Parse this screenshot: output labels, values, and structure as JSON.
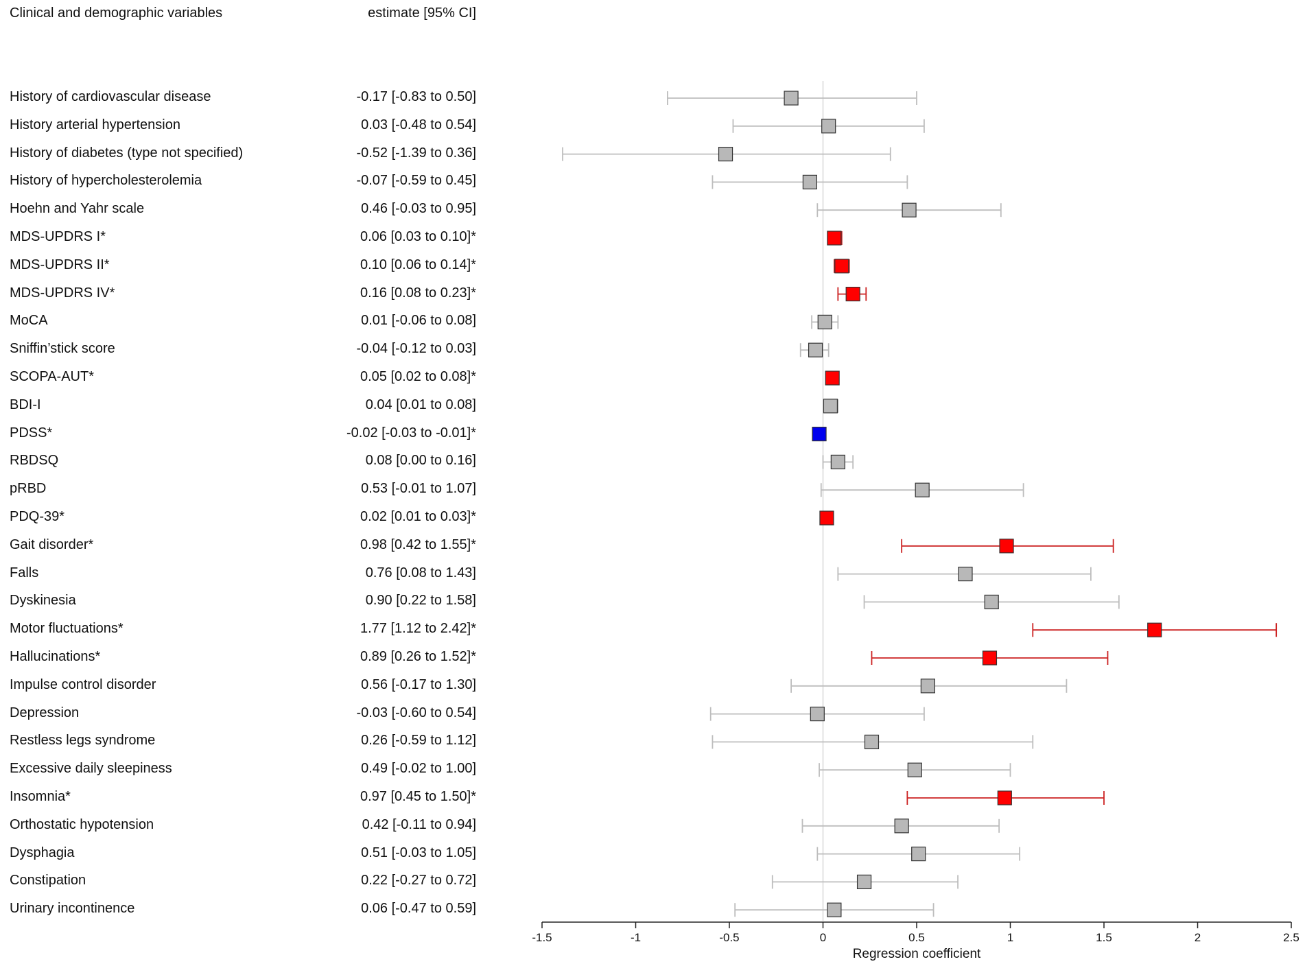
{
  "header": {
    "variables_title": "Clinical and demographic variables",
    "estimate_title": "estimate [95% CI]"
  },
  "colors": {
    "significant_positive": "#ff0000",
    "significant_positive_line": "#cc2222",
    "significant_negative": "#0000ee",
    "nonsignificant": "#b8b8b8",
    "nonsignificant_line": "#bdbdbd",
    "zero_line": "#d8d8d8"
  },
  "chart_data": {
    "type": "forest",
    "xlabel": "Regression coefficient",
    "xlim": [
      -1.5,
      2.5
    ],
    "xticks": [
      -1.5,
      -1,
      -0.5,
      0,
      0.5,
      1,
      1.5,
      2,
      2.5
    ],
    "xtick_labels": [
      "-1.5",
      "-1",
      "-0.5",
      "0",
      "0.5",
      "1",
      "1.5",
      "2",
      "2.5"
    ],
    "reference_line": 0,
    "rows": [
      {
        "label": "History of cardiovascular disease",
        "estimate_text": "-0.17 [-0.83 to 0.50]",
        "est": -0.17,
        "lo": -0.83,
        "hi": 0.5,
        "sig": "none"
      },
      {
        "label": "History arterial hypertension",
        "estimate_text": "0.03 [-0.48 to 0.54]",
        "est": 0.03,
        "lo": -0.48,
        "hi": 0.54,
        "sig": "none"
      },
      {
        "label": "History of diabetes (type not specified)",
        "estimate_text": "-0.52 [-1.39 to 0.36]",
        "est": -0.52,
        "lo": -1.39,
        "hi": 0.36,
        "sig": "none"
      },
      {
        "label": "History of hypercholesterolemia",
        "estimate_text": "-0.07 [-0.59 to 0.45]",
        "est": -0.07,
        "lo": -0.59,
        "hi": 0.45,
        "sig": "none"
      },
      {
        "label": "Hoehn and Yahr scale",
        "estimate_text": "0.46 [-0.03 to 0.95]",
        "est": 0.46,
        "lo": -0.03,
        "hi": 0.95,
        "sig": "none"
      },
      {
        "label": "MDS-UPDRS I*",
        "estimate_text": "0.06 [0.03 to 0.10]*",
        "est": 0.06,
        "lo": 0.03,
        "hi": 0.1,
        "sig": "pos"
      },
      {
        "label": "MDS-UPDRS II*",
        "estimate_text": "0.10 [0.06 to 0.14]*",
        "est": 0.1,
        "lo": 0.06,
        "hi": 0.14,
        "sig": "pos"
      },
      {
        "label": "MDS-UPDRS IV*",
        "estimate_text": "0.16 [0.08 to 0.23]*",
        "est": 0.16,
        "lo": 0.08,
        "hi": 0.23,
        "sig": "pos"
      },
      {
        "label": "MoCA",
        "estimate_text": "0.01 [-0.06 to 0.08]",
        "est": 0.01,
        "lo": -0.06,
        "hi": 0.08,
        "sig": "none"
      },
      {
        "label": "Sniffin’stick score",
        "estimate_text": "-0.04 [-0.12 to 0.03]",
        "est": -0.04,
        "lo": -0.12,
        "hi": 0.03,
        "sig": "none"
      },
      {
        "label": "SCOPA-AUT*",
        "estimate_text": "0.05 [0.02 to 0.08]*",
        "est": 0.05,
        "lo": 0.02,
        "hi": 0.08,
        "sig": "pos"
      },
      {
        "label": "BDI-I",
        "estimate_text": "0.04 [0.01 to 0.08]",
        "est": 0.04,
        "lo": 0.01,
        "hi": 0.08,
        "sig": "none"
      },
      {
        "label": "PDSS*",
        "estimate_text": "-0.02 [-0.03 to -0.01]*",
        "est": -0.02,
        "lo": -0.03,
        "hi": -0.01,
        "sig": "neg"
      },
      {
        "label": "RBDSQ",
        "estimate_text": "0.08 [0.00 to 0.16]",
        "est": 0.08,
        "lo": 0.0,
        "hi": 0.16,
        "sig": "none"
      },
      {
        "label": "pRBD",
        "estimate_text": "0.53 [-0.01 to 1.07]",
        "est": 0.53,
        "lo": -0.01,
        "hi": 1.07,
        "sig": "none"
      },
      {
        "label": "PDQ-39*",
        "estimate_text": "0.02 [0.01 to 0.03]*",
        "est": 0.02,
        "lo": 0.01,
        "hi": 0.03,
        "sig": "pos"
      },
      {
        "label": "Gait disorder*",
        "estimate_text": "0.98 [0.42 to 1.55]*",
        "est": 0.98,
        "lo": 0.42,
        "hi": 1.55,
        "sig": "pos"
      },
      {
        "label": "Falls",
        "estimate_text": "0.76 [0.08 to 1.43]",
        "est": 0.76,
        "lo": 0.08,
        "hi": 1.43,
        "sig": "none"
      },
      {
        "label": "Dyskinesia",
        "estimate_text": "0.90 [0.22 to 1.58]",
        "est": 0.9,
        "lo": 0.22,
        "hi": 1.58,
        "sig": "none"
      },
      {
        "label": "Motor fluctuations*",
        "estimate_text": "1.77 [1.12 to 2.42]*",
        "est": 1.77,
        "lo": 1.12,
        "hi": 2.42,
        "sig": "pos"
      },
      {
        "label": "Hallucinations*",
        "estimate_text": "0.89 [0.26 to 1.52]*",
        "est": 0.89,
        "lo": 0.26,
        "hi": 1.52,
        "sig": "pos"
      },
      {
        "label": "Impulse control disorder",
        "estimate_text": "0.56 [-0.17 to 1.30]",
        "est": 0.56,
        "lo": -0.17,
        "hi": 1.3,
        "sig": "none"
      },
      {
        "label": "Depression",
        "estimate_text": "-0.03 [-0.60 to 0.54]",
        "est": -0.03,
        "lo": -0.6,
        "hi": 0.54,
        "sig": "none"
      },
      {
        "label": "Restless legs syndrome",
        "estimate_text": "0.26 [-0.59 to 1.12]",
        "est": 0.26,
        "lo": -0.59,
        "hi": 1.12,
        "sig": "none"
      },
      {
        "label": "Excessive daily sleepiness",
        "estimate_text": "0.49 [-0.02 to 1.00]",
        "est": 0.49,
        "lo": -0.02,
        "hi": 1.0,
        "sig": "none"
      },
      {
        "label": "Insomnia*",
        "estimate_text": "0.97 [0.45 to 1.50]*",
        "est": 0.97,
        "lo": 0.45,
        "hi": 1.5,
        "sig": "pos"
      },
      {
        "label": "Orthostatic hypotension",
        "estimate_text": "0.42 [-0.11 to 0.94]",
        "est": 0.42,
        "lo": -0.11,
        "hi": 0.94,
        "sig": "none"
      },
      {
        "label": "Dysphagia",
        "estimate_text": "0.51 [-0.03 to 1.05]",
        "est": 0.51,
        "lo": -0.03,
        "hi": 1.05,
        "sig": "none"
      },
      {
        "label": "Constipation",
        "estimate_text": "0.22 [-0.27 to 0.72]",
        "est": 0.22,
        "lo": -0.27,
        "hi": 0.72,
        "sig": "none"
      },
      {
        "label": "Urinary incontinence",
        "estimate_text": "0.06 [-0.47 to 0.59]",
        "est": 0.06,
        "lo": -0.47,
        "hi": 0.59,
        "sig": "none"
      }
    ]
  }
}
